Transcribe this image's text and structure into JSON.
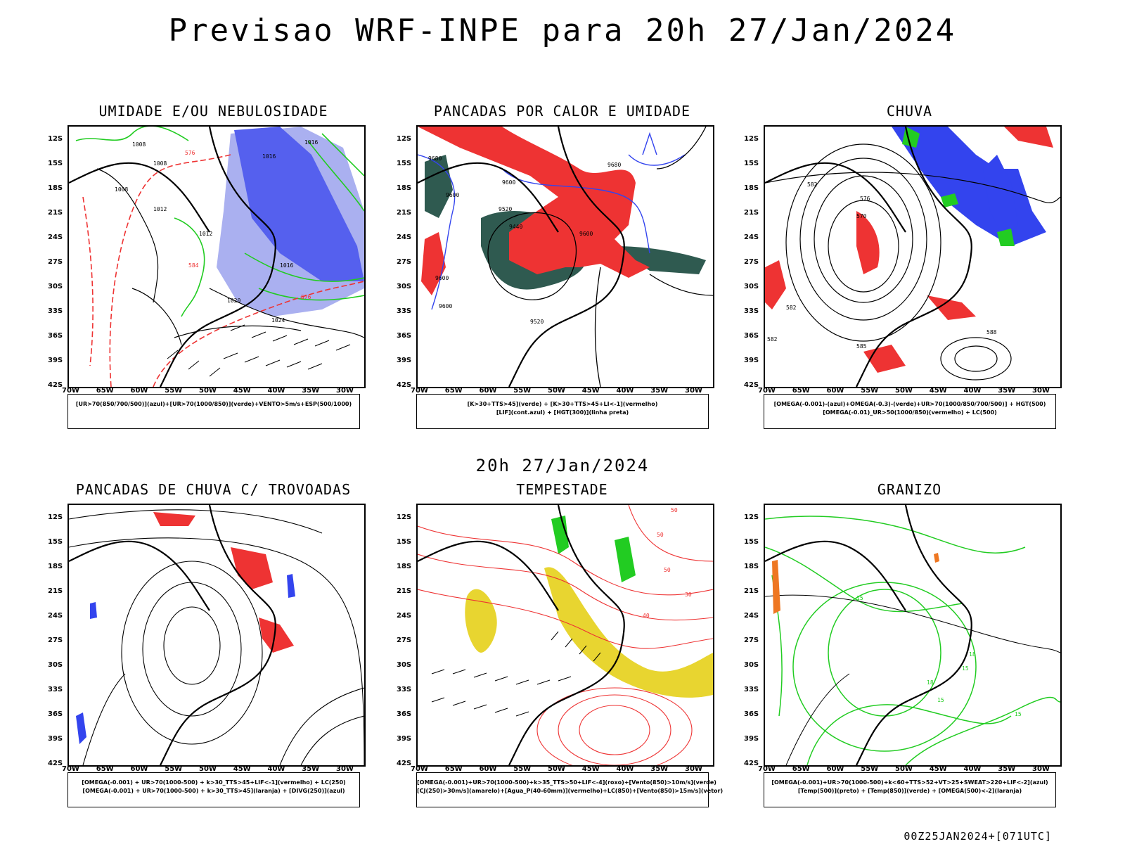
{
  "main_title": "Previsao WRF-INPE  para 20h 27/Jan/2024",
  "mid_title": "20h 27/Jan/2024",
  "footer": "00Z25JAN2024+[071UTC]",
  "lat_labels": [
    "12S",
    "15S",
    "18S",
    "21S",
    "24S",
    "27S",
    "30S",
    "33S",
    "36S",
    "39S",
    "42S"
  ],
  "lon_labels": [
    "70W",
    "65W",
    "60W",
    "55W",
    "50W",
    "45W",
    "40W",
    "35W",
    "30W"
  ],
  "colors": {
    "blue": "#3344ee",
    "light_blue": "#aab0f0",
    "green": "#22cc22",
    "red": "#ee3333",
    "dark_green": "#2f5a50",
    "yellow": "#e8d530",
    "orange": "#ee7722",
    "salmon": "#ff5a5a"
  },
  "panels": [
    {
      "title": "UMIDADE E/OU NEBULOSIDADE",
      "legend": [
        "[UR>70(850/700/500)](azul)+[UR>70(1000/850)](verde)+VENTO>5m/s+ESP(500/1000)"
      ],
      "contour_labels": [
        "1008",
        "1008",
        "1008",
        "1012",
        "1012",
        "1016",
        "1016",
        "1016",
        "1020",
        "1024",
        "576",
        "576",
        "584"
      ]
    },
    {
      "title": "PANCADAS POR CALOR E UMIDADE",
      "legend": [
        "[K>30+TTS>45](verde)  +  [K>30+TTS>45+LI<-1](vermelho)",
        "[LIF](cont.azul)  +  [HGT(300)](linha preta)"
      ],
      "contour_labels": [
        "9680",
        "9600",
        "9600",
        "9520",
        "9440",
        "9600",
        "9600",
        "9520",
        "9600",
        "9680"
      ]
    },
    {
      "title": "CHUVA",
      "legend": [
        "[OMEGA(-0.001)-(azul)+OMEGA(-0.3)-(verde)+UR>70(1000/850/700/500)]  +  HGT(500)",
        "[OMEGA(-0.01)_UR>50(1000/850)(vermelho)  +  LC(500)"
      ],
      "contour_labels": [
        "582",
        "576",
        "570",
        "582",
        "585",
        "588",
        "582"
      ]
    },
    {
      "title": "PANCADAS DE CHUVA C/ TROVOADAS",
      "legend": [
        "[OMEGA(-0.001) + UR>70(1000-500) + k>30_TTS>45+LIF<-1](vermelho) + LC(250)",
        "[OMEGA(-0.001) + UR>70(1000-500) + k>30_TTS>45](laranja) + [DIVG(250)](azul)"
      ],
      "contour_labels": []
    },
    {
      "title": "TEMPESTADE",
      "legend": [
        "[OMEGA(-0.001)+UR>70(1000-500)+k>35_TTS>50+LIF<-4](roxo)+[Vento(850)>10m/s](verde)",
        "[CJ(250)>30m/s](amarelo)+[Agua_P(40-60mm)](vermelho)+LC(850)+[Vento(850)>15m/s](vetor)"
      ],
      "contour_labels": [
        "50",
        "50",
        "40",
        "30",
        "50"
      ]
    },
    {
      "title": "GRANIZO",
      "legend": [
        "[OMEGA(-0.001)+UR>70(1000-500)+k<60+TTS>52+VT>25+SWEAT>220+LIF<-2](azul)",
        "[Temp(500)](preto)  +  [Temp(850)](verde)  +  [OMEGA(500)<-2](laranja)"
      ],
      "contour_labels": [
        "15",
        "15",
        "18",
        "15",
        "18",
        "15"
      ]
    }
  ]
}
